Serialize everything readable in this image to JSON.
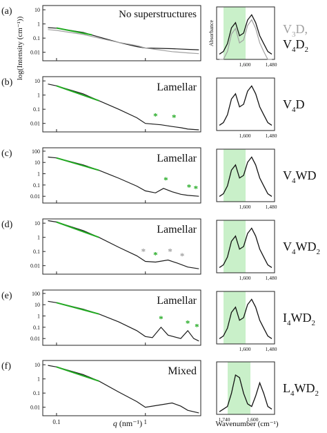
{
  "figure": {
    "y_axis_label": "log(Intensity (cm⁻¹))",
    "x_axis_label_left": "q (nm⁻¹)",
    "x_axis_label_right": "Wavenumber (cm⁻¹)",
    "ir_y_label": "Absorbance",
    "colors": {
      "saxs": "#1a1a1a",
      "fit": "#22aa22",
      "gray": "#a0a0a0",
      "shade": "#c9f0c9",
      "green_marker": "#22aa22",
      "gray_marker": "#a0a0a0"
    }
  },
  "chart_data": [
    {
      "panel": "(a)",
      "type": "line",
      "annotation": "No superstructures",
      "sample_label": [
        {
          "base": "V",
          "sub": "3",
          "rest": "D,",
          "color": "gray"
        },
        {
          "base": "V",
          "sub": "4",
          "rest": "D",
          "sub2": "2",
          "color": "black"
        }
      ],
      "x_scale": "log",
      "y_scale": "log",
      "yticks": [
        "10",
        "1",
        "0.1",
        "0.01"
      ],
      "series": [
        {
          "color": "black",
          "x": [
            0.08,
            0.1,
            0.2,
            0.3,
            0.5,
            0.8,
            1,
            2,
            3,
            4
          ],
          "y": [
            0.55,
            0.5,
            0.25,
            0.12,
            0.05,
            0.025,
            0.02,
            0.018,
            0.016,
            0.015
          ]
        },
        {
          "color": "gray",
          "x": [
            0.08,
            0.1,
            0.2,
            0.3,
            0.5,
            0.8,
            1,
            2,
            3,
            4
          ],
          "y": [
            0.4,
            0.35,
            0.18,
            0.1,
            0.05,
            0.03,
            0.02,
            0.011,
            0.009,
            0.008
          ]
        }
      ],
      "fit": {
        "x": [
          0.1,
          0.25
        ],
        "y": [
          0.52,
          0.17
        ]
      },
      "markers": [],
      "ir": {
        "xticks": [
          "1,600",
          "1,480"
        ],
        "shade": [
          1680,
          1610
        ],
        "gray_spectrum": true
      }
    },
    {
      "panel": "(b)",
      "type": "line",
      "annotation": "Lamellar",
      "sample_label": [
        {
          "base": "V",
          "sub": "4",
          "rest": "D",
          "color": "black"
        }
      ],
      "x_scale": "log",
      "y_scale": "log",
      "yticks": [
        "10",
        "1",
        "0.1",
        "0.01"
      ],
      "series": [
        {
          "color": "black",
          "x": [
            0.08,
            0.1,
            0.2,
            0.3,
            0.5,
            0.8,
            1,
            1.5,
            2,
            2.5,
            3,
            4
          ],
          "y": [
            6,
            4.5,
            1.2,
            0.4,
            0.1,
            0.025,
            0.01,
            0.008,
            0.006,
            0.005,
            0.004,
            0.0035
          ]
        }
      ],
      "fit": {
        "x": [
          0.1,
          0.3
        ],
        "y": [
          4.5,
          0.4
        ]
      },
      "markers": [
        {
          "x": 1.3,
          "y": 0.02,
          "color": "green"
        },
        {
          "x": 2.1,
          "y": 0.016,
          "color": "green"
        }
      ],
      "ir": {
        "xticks": [
          "1,600",
          "1,480"
        ],
        "shade": null,
        "gray_spectrum": false
      }
    },
    {
      "panel": "(c)",
      "type": "line",
      "annotation": "Lamellar",
      "sample_label": [
        {
          "base": "V",
          "sub": "4",
          "rest": "WD",
          "color": "black"
        }
      ],
      "x_scale": "log",
      "y_scale": "log",
      "yticks": [
        "100",
        "10",
        "1",
        "0.1",
        "0.01"
      ],
      "series": [
        {
          "color": "black",
          "x": [
            0.08,
            0.1,
            0.2,
            0.3,
            0.5,
            0.8,
            1,
            1.3,
            1.6,
            2,
            2.5,
            3,
            4
          ],
          "y": [
            30,
            25,
            6,
            2,
            0.4,
            0.08,
            0.03,
            0.02,
            0.05,
            0.025,
            0.015,
            0.012,
            0.01
          ]
        }
      ],
      "fit": {
        "x": [
          0.1,
          0.3
        ],
        "y": [
          25,
          2
        ]
      },
      "markers": [
        {
          "x": 1.7,
          "y": 0.15,
          "color": "green"
        },
        {
          "x": 3.1,
          "y": 0.035,
          "color": "green"
        },
        {
          "x": 3.7,
          "y": 0.025,
          "color": "green"
        }
      ],
      "ir": {
        "xticks": [
          "1,600",
          "1,480"
        ],
        "shade": [
          1680,
          1610
        ],
        "gray_spectrum": false
      }
    },
    {
      "panel": "(d)",
      "type": "line",
      "annotation": "Lamellar",
      "sample_label": [
        {
          "base": "V",
          "sub": "4",
          "rest": "WD",
          "sub2": "2",
          "color": "black"
        }
      ],
      "x_scale": "log",
      "y_scale": "log",
      "yticks": [
        "10",
        "1",
        "0.1",
        "0.01"
      ],
      "series": [
        {
          "color": "black",
          "x": [
            0.08,
            0.1,
            0.2,
            0.3,
            0.5,
            0.8,
            1,
            1.3,
            1.8,
            2.3,
            3,
            4
          ],
          "y": [
            15,
            12,
            3,
            1,
            0.2,
            0.05,
            0.02,
            0.018,
            0.025,
            0.015,
            0.008,
            0.006
          ]
        }
      ],
      "fit": {
        "x": [
          0.1,
          0.3
        ],
        "y": [
          12,
          1
        ]
      },
      "markers": [
        {
          "x": 0.95,
          "y": 0.06,
          "color": "gray"
        },
        {
          "x": 1.3,
          "y": 0.035,
          "color": "green"
        },
        {
          "x": 1.9,
          "y": 0.06,
          "color": "gray"
        },
        {
          "x": 2.6,
          "y": 0.03,
          "color": "gray"
        }
      ],
      "ir": {
        "xticks": [
          "1,600",
          "1,480"
        ],
        "shade": [
          1680,
          1610
        ],
        "gray_spectrum": false
      }
    },
    {
      "panel": "(e)",
      "type": "line",
      "annotation": "Lamellar",
      "sample_label": [
        {
          "base": "I",
          "sub": "4",
          "rest": "WD",
          "sub2": "2",
          "color": "black"
        }
      ],
      "x_scale": "log",
      "y_scale": "log",
      "yticks": [
        "100",
        "10",
        "1",
        "0.1",
        "0.01"
      ],
      "series": [
        {
          "color": "black",
          "x": [
            0.08,
            0.1,
            0.2,
            0.3,
            0.5,
            0.8,
            1,
            1.2,
            1.5,
            1.8,
            2.5,
            3,
            3.5,
            4
          ],
          "y": [
            20,
            15,
            4,
            1.5,
            0.3,
            0.05,
            0.015,
            0.012,
            0.1,
            0.02,
            0.01,
            0.05,
            0.01,
            0.006
          ]
        }
      ],
      "fit": {
        "x": [
          0.1,
          0.3
        ],
        "y": [
          15,
          1.5
        ]
      },
      "markers": [
        {
          "x": 1.5,
          "y": 0.3,
          "color": "green"
        },
        {
          "x": 3.0,
          "y": 0.12,
          "color": "green"
        },
        {
          "x": 3.8,
          "y": 0.06,
          "color": "green"
        }
      ],
      "ir": {
        "xticks": [
          "1,600",
          "1,480"
        ],
        "shade": [
          1680,
          1610
        ],
        "gray_spectrum": false
      }
    },
    {
      "panel": "(f)",
      "type": "line",
      "annotation": "Mixed",
      "sample_label": [
        {
          "base": "L",
          "sub": "4",
          "rest": "WD",
          "sub2": "2",
          "color": "black"
        }
      ],
      "x_scale": "log",
      "y_scale": "log",
      "yticks": [
        "10",
        "1",
        "0.1",
        "0.01"
      ],
      "series": [
        {
          "color": "black",
          "x": [
            0.08,
            0.1,
            0.2,
            0.3,
            0.5,
            0.8,
            1,
            1.5,
            2,
            2.5,
            3,
            4
          ],
          "y": [
            9,
            7,
            2,
            0.7,
            0.12,
            0.025,
            0.01,
            0.015,
            0.02,
            0.012,
            0.006,
            0.004
          ]
        }
      ],
      "fit": {
        "x": [
          0.1,
          0.3
        ],
        "y": [
          7,
          0.7
        ]
      },
      "markers": [],
      "ir": {
        "xticks": [
          "1,740",
          "1,600"
        ],
        "shade": [
          1720,
          1650
        ],
        "gray_spectrum": false
      }
    }
  ],
  "bottom_axis": {
    "xticks": [
      "0.1",
      "1"
    ],
    "q_label": "q",
    "q_unit": "(nm⁻¹)",
    "wn_label": "Wavenumber (cm⁻¹)"
  }
}
